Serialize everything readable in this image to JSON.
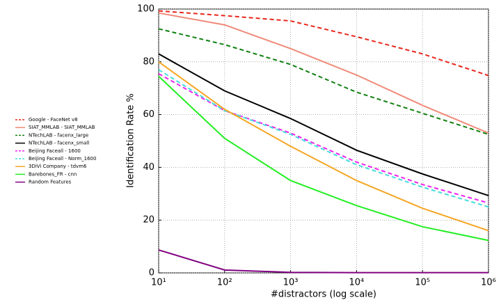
{
  "chart_data": {
    "type": "line",
    "x_label": "#distractors (log scale)",
    "y_label": "Identification Rate %",
    "x": [
      10,
      100,
      1000,
      10000,
      100000,
      1000000
    ],
    "xlim": [
      10,
      1000000
    ],
    "xticks": [
      {
        "value": 10,
        "label": "10¹"
      },
      {
        "value": 100,
        "label": "10²"
      },
      {
        "value": 1000,
        "label": "10³"
      },
      {
        "value": 10000,
        "label": "10⁴"
      },
      {
        "value": 100000,
        "label": "10⁵"
      },
      {
        "value": 1000000,
        "label": "10⁶"
      }
    ],
    "xscale": "log",
    "ylim": [
      0,
      100
    ],
    "yticks": [
      0,
      20,
      40,
      60,
      80,
      100
    ],
    "grid": true,
    "legend": "left",
    "series": [
      {
        "name": "Google - FaceNet v8",
        "color": "#e8261c",
        "linestyle": "dashed",
        "values": [
          99.3,
          97.5,
          95.5,
          89.5,
          83,
          74.8
        ]
      },
      {
        "name": "SIAT_MMLAB - SIAT_MMLAB",
        "color": "#f08a78",
        "linestyle": "solid",
        "values": [
          98.5,
          94,
          85,
          75,
          63.5,
          53
        ]
      },
      {
        "name": "NTechLAB - facenx_large",
        "color": "#108010",
        "linestyle": "dashed",
        "values": [
          92.5,
          86.5,
          79,
          68.5,
          60.5,
          52.5
        ]
      },
      {
        "name": "NTechLAB - facenx_small",
        "color": "#000000",
        "linestyle": "solid",
        "values": [
          83,
          69,
          58.5,
          46.5,
          37.5,
          29.3
        ]
      },
      {
        "name": "Beijing Faceall - 1600",
        "color": "#ee22ee",
        "linestyle": "dashed",
        "values": [
          75.5,
          61.5,
          53,
          42,
          33.5,
          26.5
        ]
      },
      {
        "name": "Beijing Faceall - Norm_1600",
        "color": "#44dddd",
        "linestyle": "dashed",
        "values": [
          77,
          61.5,
          52.5,
          41,
          32.5,
          25
        ]
      },
      {
        "name": "3DiVi Company - tdvm6",
        "color": "#f5a623",
        "linestyle": "solid",
        "values": [
          80,
          62,
          48,
          35,
          24.5,
          16
        ]
      },
      {
        "name": "Barebones_FR - cnn",
        "color": "#22ee22",
        "linestyle": "solid",
        "values": [
          74.5,
          51,
          35,
          25.5,
          17.5,
          12.3
        ]
      },
      {
        "name": "Random Features",
        "color": "#800080",
        "linestyle": "solid",
        "values": [
          8.7,
          1.1,
          0.2,
          0.1,
          0.1,
          0.1
        ]
      }
    ]
  }
}
